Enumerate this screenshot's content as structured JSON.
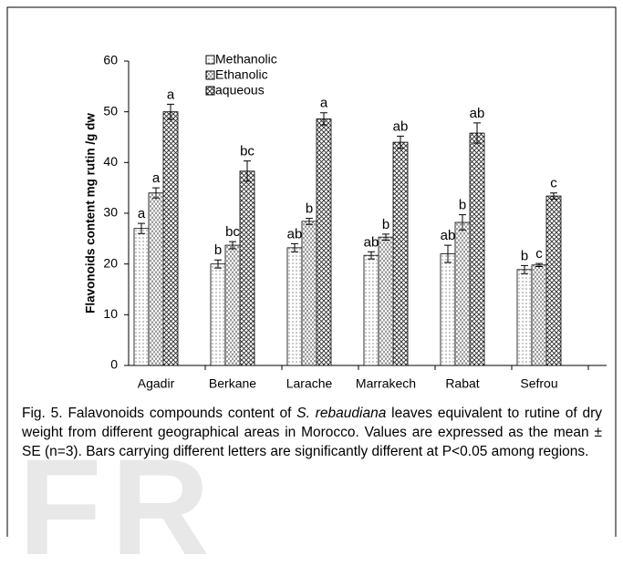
{
  "chart_data": {
    "type": "bar",
    "ylabel": "Flavonoids content mg rutin /g dw",
    "categories": [
      "Agadir",
      "Berkane",
      "Larache",
      "Marrakech",
      "Rabat",
      "Sefrou"
    ],
    "series": [
      {
        "name": "Methanolic",
        "color": "#000000",
        "pattern": "dots",
        "values": [
          27,
          20,
          23.2,
          21.7,
          22,
          18.9
        ],
        "errors": [
          1,
          0.8,
          0.8,
          0.7,
          1.7,
          0.8
        ],
        "letters": [
          "a",
          "b",
          "ab",
          "ab",
          "ab",
          "b"
        ]
      },
      {
        "name": "Ethanolic",
        "color": "#000000",
        "pattern": "dashes",
        "values": [
          34,
          23.7,
          28.4,
          25.3,
          28.2,
          19.8
        ],
        "errors": [
          1,
          0.7,
          0.6,
          0.6,
          1.5,
          0.3
        ],
        "letters": [
          "a",
          "bc",
          "b",
          "b",
          "b",
          "c"
        ]
      },
      {
        "name": "aqueous",
        "color": "#000000",
        "pattern": "crosshatch",
        "values": [
          50,
          38.3,
          48.6,
          44,
          45.8,
          33.4
        ],
        "errors": [
          1.5,
          2,
          1.2,
          1.2,
          2,
          0.6
        ],
        "letters": [
          "a",
          "bc",
          "a",
          "ab",
          "ab",
          "c"
        ]
      }
    ],
    "ylim": [
      0,
      60
    ],
    "yticks": [
      0,
      10,
      20,
      30,
      40,
      50,
      60
    ],
    "grid": false,
    "legend": "top-left"
  },
  "caption": [
    {
      "text": "Fig. 5. Falavonoids compounds content of ",
      "italic": false
    },
    {
      "text": "S. rebaudiana",
      "italic": true
    },
    {
      "text": " leaves equivalent to rutine of dry weight from different geographical areas in Morocco. Values are expressed as the mean ± SE (n=3). Bars carrying different letters are significantly different at P<0.05 among regions.",
      "italic": false
    }
  ],
  "watermark": "FR"
}
